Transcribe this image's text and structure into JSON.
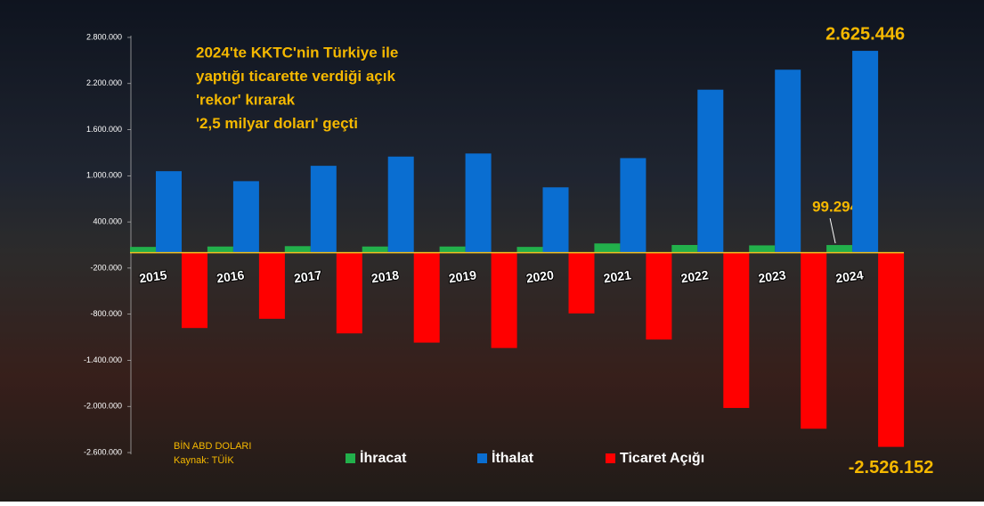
{
  "chart_data": {
    "type": "bar",
    "title": [
      "2024'te KKTC'nin Türkiye ile",
      "yaptığı ticarette verdiği açık",
      "'rekor' kırarak",
      "'2,5 milyar doları' geçti"
    ],
    "notes": [
      "BİN ABD DOLARI",
      "Kaynak: TÜİK"
    ],
    "categories": [
      "2015",
      "2016",
      "2017",
      "2018",
      "2019",
      "2020",
      "2021",
      "2022",
      "2023",
      "2024"
    ],
    "series": [
      {
        "name": "İhracat",
        "color": "#22b04b",
        "values": [
          75000,
          80000,
          85000,
          80000,
          80000,
          75000,
          120000,
          100000,
          95000,
          99294
        ],
        "value_labels": [
          null,
          null,
          null,
          null,
          null,
          null,
          null,
          null,
          null,
          "99.294"
        ]
      },
      {
        "name": "İthalat",
        "color": "#0a6ed1",
        "values": [
          1060000,
          930000,
          1130000,
          1250000,
          1290000,
          850000,
          1230000,
          2120000,
          2380000,
          2625446
        ],
        "value_labels": [
          null,
          null,
          null,
          null,
          null,
          null,
          null,
          null,
          null,
          "2.625.446"
        ]
      },
      {
        "name": "Ticaret Açığı",
        "color": "#ff0000",
        "values": [
          -980000,
          -860000,
          -1050000,
          -1170000,
          -1240000,
          -790000,
          -1130000,
          -2020000,
          -2290000,
          -2526152
        ],
        "value_labels": [
          null,
          null,
          null,
          null,
          null,
          null,
          null,
          null,
          null,
          "-2.526.152"
        ]
      }
    ],
    "ylim": [
      -2600000,
      2800000
    ],
    "yticks": [
      {
        "value": 2800000,
        "label": "2.800.000"
      },
      {
        "value": 2200000,
        "label": "2.200.000"
      },
      {
        "value": 1600000,
        "label": "1.600.000"
      },
      {
        "value": 1000000,
        "label": "1.000.000"
      },
      {
        "value": 400000,
        "label": "400.000"
      },
      {
        "value": -200000,
        "label": "-200.000"
      },
      {
        "value": -800000,
        "label": "-800.000"
      },
      {
        "value": -1400000,
        "label": "-1.400.000"
      },
      {
        "value": -2000000,
        "label": "-2.000.000"
      },
      {
        "value": -2600000,
        "label": "-2.600.000"
      }
    ],
    "grid": false
  }
}
